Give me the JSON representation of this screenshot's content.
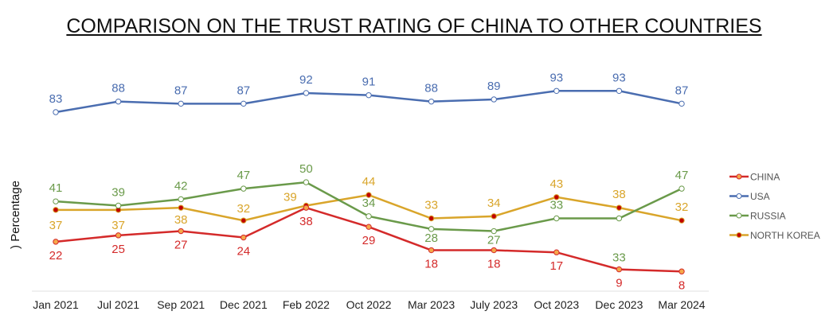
{
  "chart_data": {
    "type": "line",
    "title": "COMPARISON ON THE TRUST RATING OF CHINA TO OTHER COUNTRIES",
    "ylabel": ") Percentage",
    "xlabel": "",
    "categories": [
      "Jan 2021",
      "Jul 2021",
      "Sep 2021",
      "Dec 2021",
      "Feb 2022",
      "Oct 2022",
      "Mar 2023",
      "July 2023",
      "Oct 2023",
      "Dec 2023",
      "Mar 2024"
    ],
    "ylim": [
      0,
      100
    ],
    "grid": false,
    "legend_position": "right",
    "series": [
      {
        "name": "CHINA",
        "color": "#d42a2a",
        "marker_color": "#f5a84a",
        "values": [
          22,
          25,
          27,
          24,
          38,
          29,
          18,
          18,
          17,
          9,
          8
        ]
      },
      {
        "name": "USA",
        "color": "#4a6db0",
        "marker_color": "#ffffff",
        "values": [
          83,
          88,
          87,
          87,
          92,
          91,
          88,
          89,
          93,
          93,
          87
        ]
      },
      {
        "name": "RUSSIA",
        "color": "#6a9a4a",
        "marker_color": "#ffffff",
        "values": [
          41,
          39,
          42,
          47,
          50,
          34,
          28,
          27,
          33,
          33,
          47
        ]
      },
      {
        "name": "NORTH KOREA",
        "color": "#d9a52a",
        "marker_color": "#c00000",
        "values": [
          37,
          37,
          38,
          32,
          39,
          44,
          33,
          34,
          43,
          38,
          32
        ]
      }
    ]
  }
}
